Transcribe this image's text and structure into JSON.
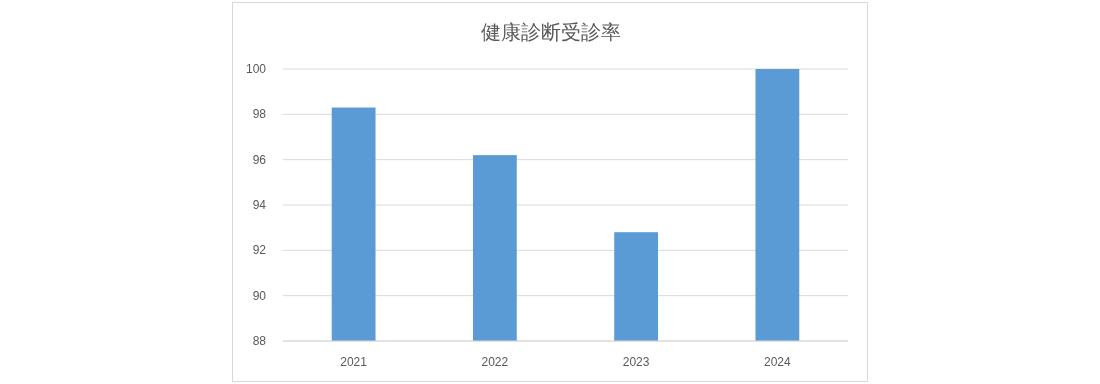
{
  "chart_data": {
    "type": "bar",
    "title": "健康診断受診率",
    "categories": [
      "2021",
      "2022",
      "2023",
      "2024"
    ],
    "values": [
      98.3,
      96.2,
      92.8,
      100
    ],
    "color": "#5b9bd5",
    "ylim": [
      88,
      100
    ],
    "yticks": [
      88,
      90,
      92,
      94,
      96,
      98,
      100
    ],
    "grid": "y"
  }
}
